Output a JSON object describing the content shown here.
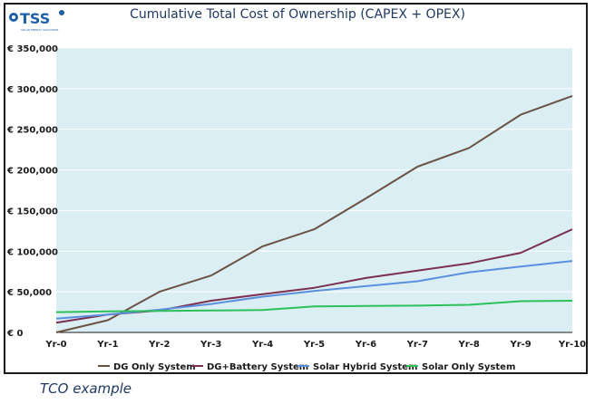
{
  "logo": {
    "text": "TSS",
    "tagline": "SOLAR ENERGY SOLUTIONS",
    "color": "#1f5fa8"
  },
  "caption": "TCO example",
  "chart_data": {
    "type": "line",
    "title": "Cumulative Total Cost of Ownership (CAPEX + OPEX)",
    "xlabel": "",
    "ylabel": "",
    "categories": [
      "Yr-0",
      "Yr-1",
      "Yr-2",
      "Yr-3",
      "Yr-4",
      "Yr-5",
      "Yr-6",
      "Yr-7",
      "Yr-8",
      "Yr-9",
      "Yr-10"
    ],
    "ylim": [
      0,
      350000
    ],
    "yticks": [
      0,
      50000,
      100000,
      150000,
      200000,
      250000,
      300000,
      350000
    ],
    "ytick_labels": [
      "€ 0",
      "€ 50,000",
      "€ 100,000",
      "€ 150,000",
      "€ 200,000",
      "€ 250,000",
      "€ 300,000",
      "€ 350,000"
    ],
    "grid": true,
    "plot_background": "#daeef3",
    "legend_position": "bottom",
    "series": [
      {
        "name": "DG Only System",
        "color": "#6b5344",
        "values": [
          0,
          15000,
          50000,
          70000,
          106000,
          127000,
          165000,
          204000,
          227000,
          268000,
          291000
        ]
      },
      {
        "name": "DG+Battery System",
        "color": "#7b3050",
        "values": [
          12000,
          22000,
          27000,
          39000,
          47000,
          55000,
          67000,
          76000,
          85000,
          98000,
          127000
        ]
      },
      {
        "name": "Solar Hybrid System",
        "color": "#5b8fe0",
        "values": [
          17000,
          22000,
          28000,
          35000,
          44000,
          51000,
          57000,
          63000,
          74000,
          81000,
          88000
        ]
      },
      {
        "name": "Solar Only System",
        "color": "#2ec05a",
        "values": [
          25000,
          26000,
          26500,
          27000,
          27500,
          32000,
          32500,
          33000,
          34000,
          38500,
          39000
        ]
      }
    ]
  }
}
